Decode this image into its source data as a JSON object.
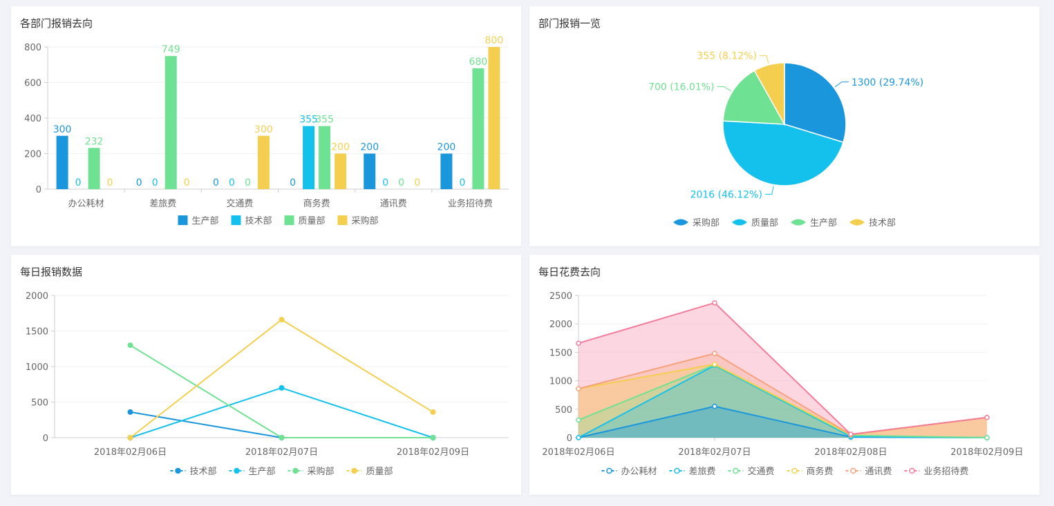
{
  "colors": {
    "blue": "#1a96dc",
    "cyan": "#14c1ec",
    "green": "#6fe192",
    "yellow": "#f4cf4f",
    "orange": "#f7a17a",
    "pink": "#f47b9a",
    "axis": "#cccccc",
    "grid": "#f2f2f2",
    "text": "#666666"
  },
  "panels": {
    "p1": {
      "title": "各部门报销去向"
    },
    "p2": {
      "title": "部门报销一览"
    },
    "p3": {
      "title": "每日报销数据"
    },
    "p4": {
      "title": "每日花费去向"
    }
  },
  "chart_data": [
    {
      "id": "bar",
      "type": "bar",
      "title": "各部门报销去向",
      "categories": [
        "办公耗材",
        "差旅费",
        "交通费",
        "商务费",
        "通讯费",
        "业务招待费"
      ],
      "ylim": [
        0,
        800
      ],
      "yticks": [
        0,
        200,
        400,
        600,
        800
      ],
      "grid": true,
      "legend_position": "bottom",
      "series": [
        {
          "name": "生产部",
          "color": "#1a96dc",
          "values": [
            300,
            0,
            0,
            0,
            200,
            200
          ]
        },
        {
          "name": "技术部",
          "color": "#14c1ec",
          "values": [
            0,
            0,
            0,
            355,
            0,
            0
          ]
        },
        {
          "name": "质量部",
          "color": "#6fe192",
          "values": [
            232,
            749,
            0,
            355,
            0,
            680
          ]
        },
        {
          "name": "采购部",
          "color": "#f4cf4f",
          "values": [
            0,
            0,
            300,
            200,
            0,
            800
          ]
        }
      ]
    },
    {
      "id": "pie",
      "type": "pie",
      "title": "部门报销一览",
      "legend_position": "bottom",
      "legend": [
        "采购部",
        "质量部",
        "生产部",
        "技术部"
      ],
      "slices": [
        {
          "value": 1300,
          "label": "1300 (29.74%)",
          "color": "#1a96dc"
        },
        {
          "value": 2016,
          "label": "2016 (46.12%)",
          "color": "#14c1ec"
        },
        {
          "value": 700,
          "label": "700 (16.01%)",
          "color": "#6fe192"
        },
        {
          "value": 355,
          "label": "355 (8.12%)",
          "color": "#f4cf4f"
        }
      ]
    },
    {
      "id": "line",
      "type": "line",
      "title": "每日报销数据",
      "x": [
        "2018年02月06日",
        "2018年02月07日",
        "2018年02月09日"
      ],
      "ylim": [
        0,
        2000
      ],
      "yticks": [
        0,
        500,
        1000,
        1500,
        2000
      ],
      "grid": true,
      "legend_position": "bottom",
      "series": [
        {
          "name": "技术部",
          "color": "#1a96dc",
          "values": [
            360,
            0,
            0
          ]
        },
        {
          "name": "生产部",
          "color": "#14c1ec",
          "values": [
            0,
            700,
            0
          ]
        },
        {
          "name": "采购部",
          "color": "#6fe192",
          "values": [
            1300,
            0,
            0
          ]
        },
        {
          "name": "质量部",
          "color": "#f4cf4f",
          "values": [
            0,
            1660,
            360
          ]
        }
      ]
    },
    {
      "id": "area",
      "type": "area",
      "title": "每日花费去向",
      "x": [
        "2018年02月06日",
        "2018年02月07日",
        "2018年02月08日",
        "2018年02月09日"
      ],
      "ylim": [
        0,
        2500
      ],
      "yticks": [
        0,
        500,
        1000,
        1500,
        2000,
        2500
      ],
      "grid": true,
      "legend_position": "bottom",
      "series": [
        {
          "name": "办公耗材",
          "color": "#1a96dc",
          "values": [
            0,
            550,
            10,
            0
          ]
        },
        {
          "name": "差旅费",
          "color": "#14c1ec",
          "values": [
            0,
            1270,
            20,
            0
          ]
        },
        {
          "name": "交通费",
          "color": "#6fe192",
          "values": [
            310,
            1280,
            40,
            0
          ]
        },
        {
          "name": "商务费",
          "color": "#f4cf4f",
          "values": [
            860,
            1290,
            50,
            355
          ]
        },
        {
          "name": "通讯费",
          "color": "#f7a17a",
          "values": [
            860,
            1480,
            55,
            355
          ]
        },
        {
          "name": "业务招待费",
          "color": "#f47b9a",
          "values": [
            1660,
            2370,
            60,
            355
          ]
        }
      ]
    }
  ]
}
